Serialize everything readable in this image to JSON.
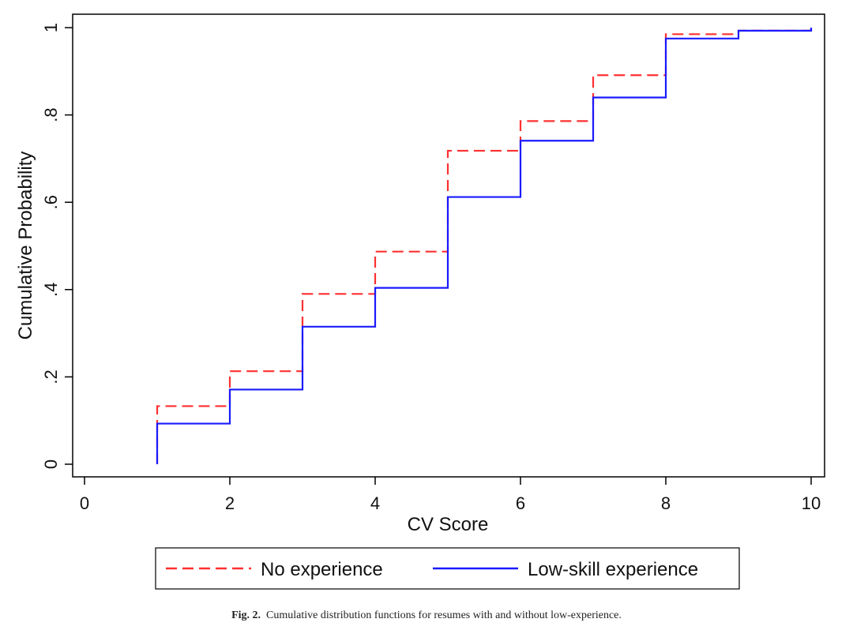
{
  "chart_data": {
    "type": "line",
    "step": true,
    "xlabel": "CV Score",
    "ylabel": "Cumulative Probability",
    "xlim": [
      0,
      10
    ],
    "ylim": [
      0,
      1
    ],
    "xticks": [
      0,
      2,
      4,
      6,
      8,
      10
    ],
    "xtick_labels": [
      "0",
      "2",
      "4",
      "6",
      "8",
      "10"
    ],
    "yticks": [
      0,
      0.2,
      0.4,
      0.6,
      0.8,
      1
    ],
    "ytick_labels": [
      "0",
      ".2",
      ".4",
      ".6",
      ".8",
      "1"
    ],
    "grid": false,
    "legend_position": "bottom",
    "series": [
      {
        "name": "No experience",
        "color": "#ff3030",
        "style": "dashed",
        "x": [
          1,
          2,
          3,
          4,
          5,
          6,
          7,
          8,
          9,
          10
        ],
        "y": [
          0.133,
          0.213,
          0.39,
          0.487,
          0.718,
          0.786,
          0.891,
          0.985,
          0.993,
          1.0
        ]
      },
      {
        "name": "Low-skill experience",
        "color": "#1a1aff",
        "style": "solid",
        "x": [
          1,
          2,
          3,
          4,
          5,
          6,
          7,
          8,
          9,
          10
        ],
        "y": [
          0.093,
          0.171,
          0.315,
          0.404,
          0.612,
          0.741,
          0.84,
          0.975,
          0.993,
          1.0
        ]
      }
    ]
  },
  "caption": {
    "label": "Fig. 2.",
    "text": "Cumulative distribution functions for resumes with and without low-experience."
  }
}
